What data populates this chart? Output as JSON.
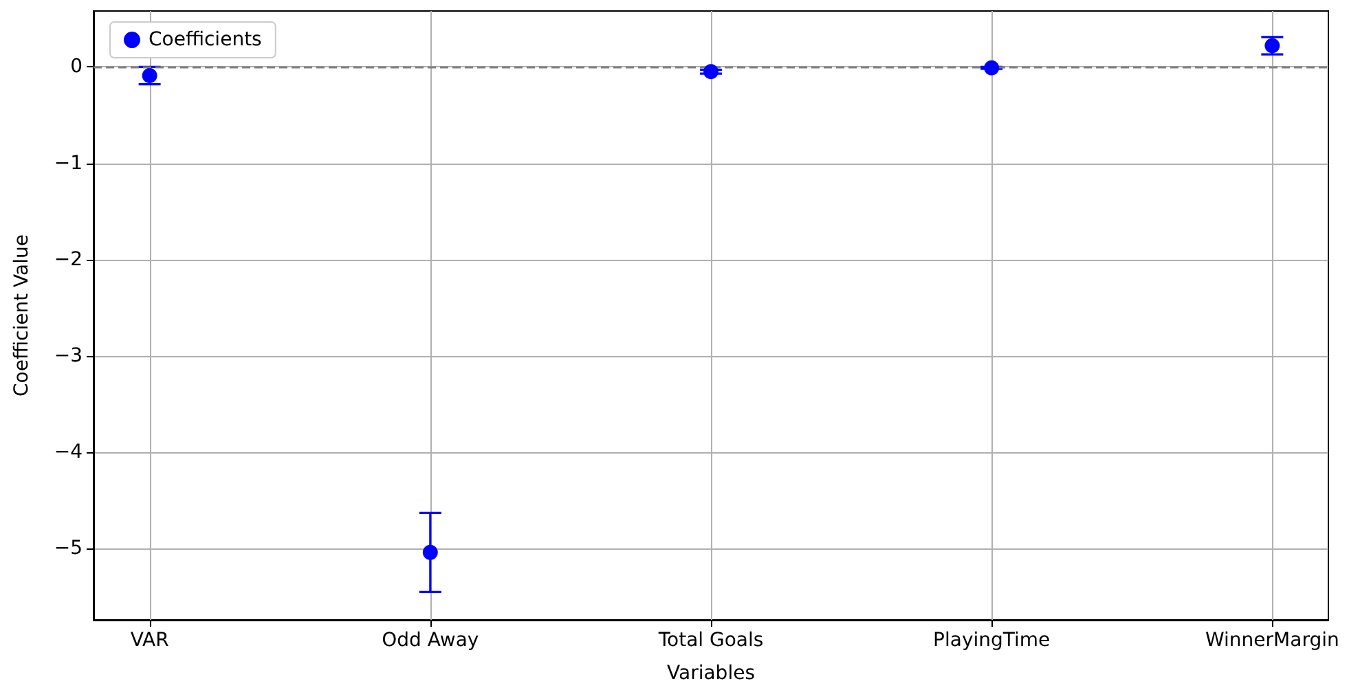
{
  "chart_data": {
    "type": "scatter",
    "xlabel": "Variables",
    "ylabel": "Coefficient Value",
    "categories": [
      "VAR",
      "Odd Away",
      "Total Goals",
      "PlayingTime",
      "WinnerMargin"
    ],
    "series": [
      {
        "name": "Coefficients",
        "color": "#0000ff",
        "values": [
          -0.09,
          -5.04,
          -0.05,
          -0.01,
          0.22
        ],
        "errors": [
          0.09,
          0.41,
          0.02,
          0.01,
          0.09
        ]
      }
    ],
    "ylim": [
      -5.74,
      0.58
    ],
    "yticks": [
      -5,
      -4,
      -3,
      -2,
      -1,
      0
    ],
    "ref_lines": [
      {
        "axis": "y",
        "value": 0,
        "color": "#808080",
        "line_style": "dashed"
      }
    ],
    "grid": true,
    "legend": "top left",
    "marker": "circle"
  }
}
